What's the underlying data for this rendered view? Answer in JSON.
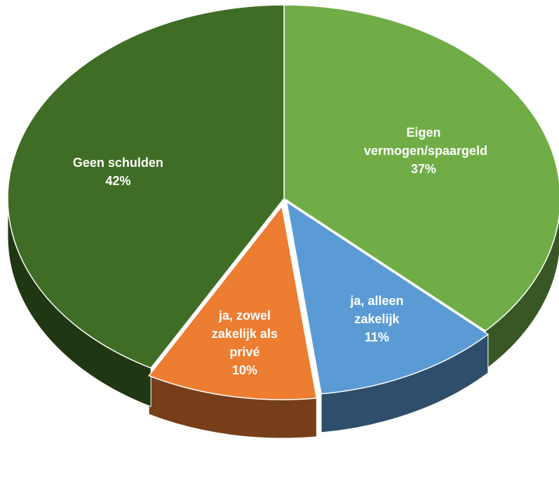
{
  "chart_data": {
    "type": "pie",
    "categories": [
      "Eigen vermogen/spaargeld",
      "ja, alleen zakelijk",
      "ja, zowel zakelijk als privé",
      "Geen schulden"
    ],
    "values": [
      37,
      11,
      10,
      42
    ],
    "value_labels": [
      "37%",
      "11%",
      "10%",
      "42%"
    ],
    "colors": [
      "#70ad47",
      "#5b9bd5",
      "#ed7d31",
      "#3f6d25"
    ]
  }
}
